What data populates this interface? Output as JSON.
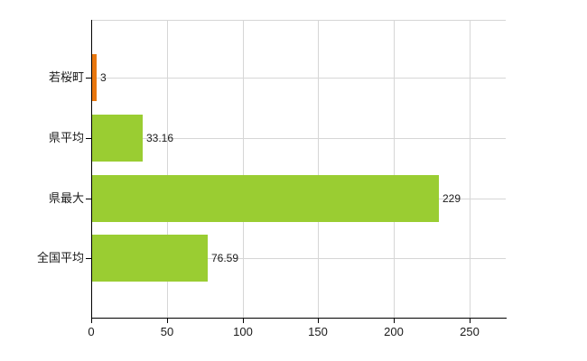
{
  "chart_data": {
    "type": "bar",
    "orientation": "horizontal",
    "title": "",
    "xlabel": "",
    "ylabel": "",
    "categories": [
      "若桜町",
      "県平均",
      "県最大",
      "全国平均"
    ],
    "values": [
      3,
      33.16,
      229,
      76.59
    ],
    "value_labels": [
      "3",
      "33.16",
      "229",
      "76.59"
    ],
    "bar_colors": [
      "#e8770f",
      "#9acd32",
      "#9acd32",
      "#9acd32"
    ],
    "xticks": [
      0,
      50,
      100,
      150,
      200,
      250
    ],
    "xtick_labels": [
      "0",
      "50",
      "100",
      "150",
      "200",
      "250"
    ],
    "xlim": [
      0,
      274
    ],
    "grid": true,
    "legend": false
  },
  "style": {
    "axis_color": "#000000",
    "grid_color": "#d6d6d6",
    "background_color": "#ffffff",
    "default_bar_color": "#9acd32",
    "highlight_bar_color": "#e8770f"
  }
}
